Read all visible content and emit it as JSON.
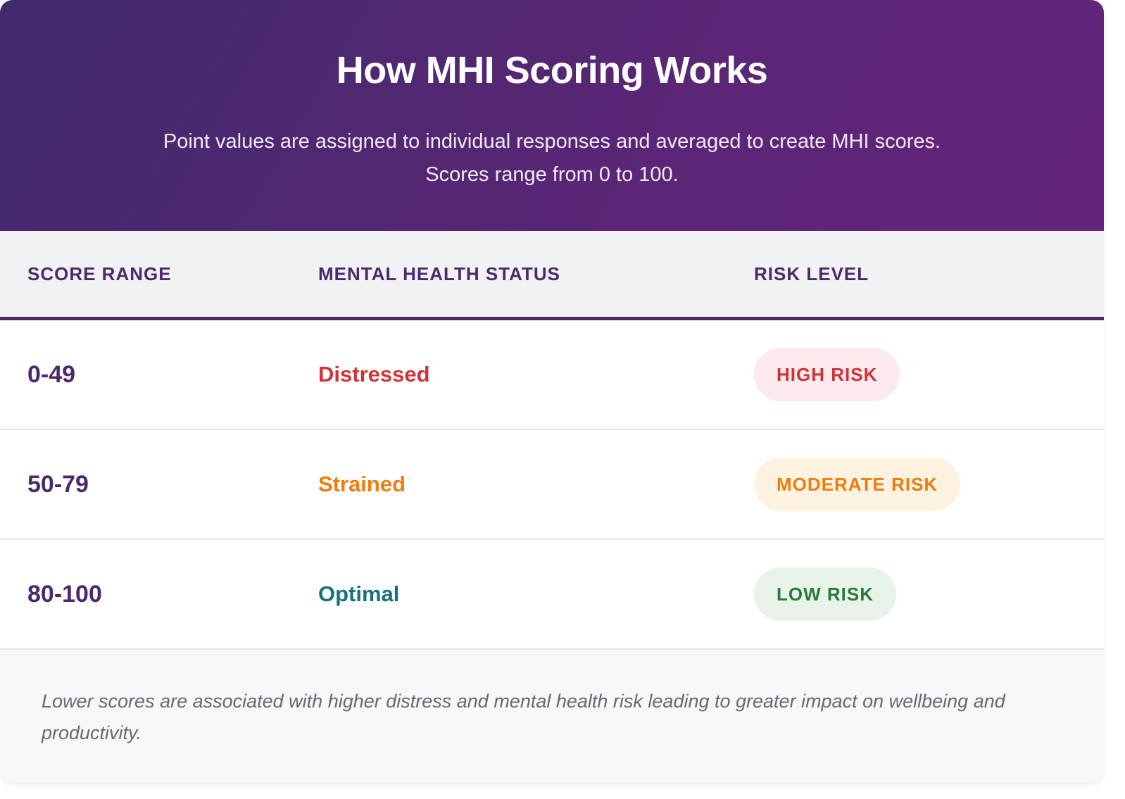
{
  "header": {
    "title": "How MHI Scoring Works",
    "subtitle": "Point values are assigned to individual responses and averaged to create MHI scores. Scores range from 0 to 100."
  },
  "table": {
    "columns": [
      "SCORE RANGE",
      "MENTAL HEALTH STATUS",
      "RISK LEVEL"
    ],
    "rows": [
      [
        "0-49",
        "Distressed",
        "HIGH RISK"
      ],
      [
        "50-79",
        "Strained",
        "MODERATE RISK"
      ],
      [
        "80-100",
        "Optimal",
        "LOW RISK"
      ]
    ]
  },
  "footer": {
    "note": "Lower scores are associated with higher distress and mental health risk leading to greater impact on wellbeing and productivity."
  }
}
